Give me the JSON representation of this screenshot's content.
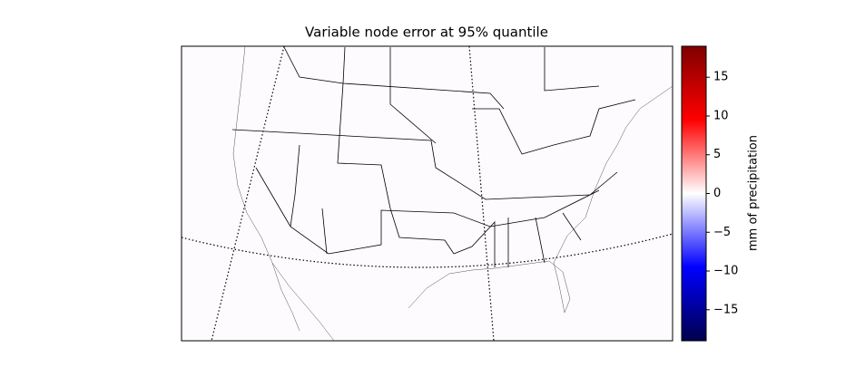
{
  "title": "Variable node error at 95% quantile",
  "colorbar": {
    "label": "mm of precipitation",
    "lim": [
      -19,
      19
    ],
    "ticks": [
      {
        "value": -15,
        "label": "−15"
      },
      {
        "value": -10,
        "label": "−10"
      },
      {
        "value": -5,
        "label": "−5"
      },
      0,
      5,
      10,
      15
    ],
    "colormap": [
      "#00004c",
      "#0000ff",
      "#ffffff",
      "#ff0000",
      "#7f0000"
    ]
  }
}
